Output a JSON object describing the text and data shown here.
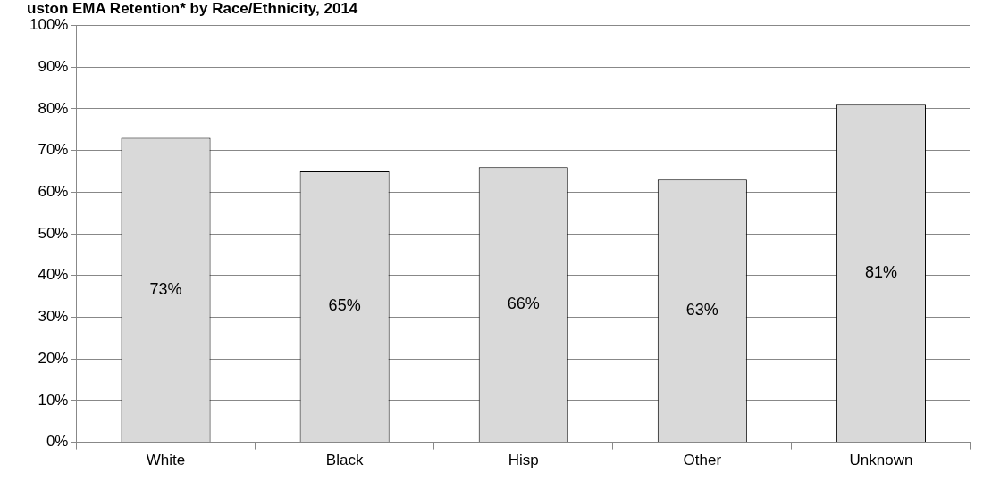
{
  "chart_data": {
    "type": "bar",
    "title": "uston EMA Retention* by Race/Ethnicity, 2014",
    "categories": [
      "White",
      "Black",
      "Hisp",
      "Other",
      "Unknown"
    ],
    "values": [
      73,
      65,
      66,
      63,
      81
    ],
    "color": "#d9d9d9",
    "ylim": [
      0,
      100
    ],
    "yticks": [
      {
        "value": 0,
        "label": "0%"
      },
      {
        "value": 10,
        "label": "10%"
      },
      {
        "value": 20,
        "label": "20%"
      },
      {
        "value": 30,
        "label": "30%"
      },
      {
        "value": 40,
        "label": "40%"
      },
      {
        "value": 50,
        "label": "50%"
      },
      {
        "value": 60,
        "label": "60%"
      },
      {
        "value": 70,
        "label": "70%"
      },
      {
        "value": 80,
        "label": "80%"
      },
      {
        "value": 90,
        "label": "90%"
      },
      {
        "value": 100,
        "label": "100%"
      }
    ],
    "value_labels": [
      "73%",
      "65%",
      "66%",
      "63%",
      "81%"
    ],
    "grid": "y",
    "legend": false
  }
}
